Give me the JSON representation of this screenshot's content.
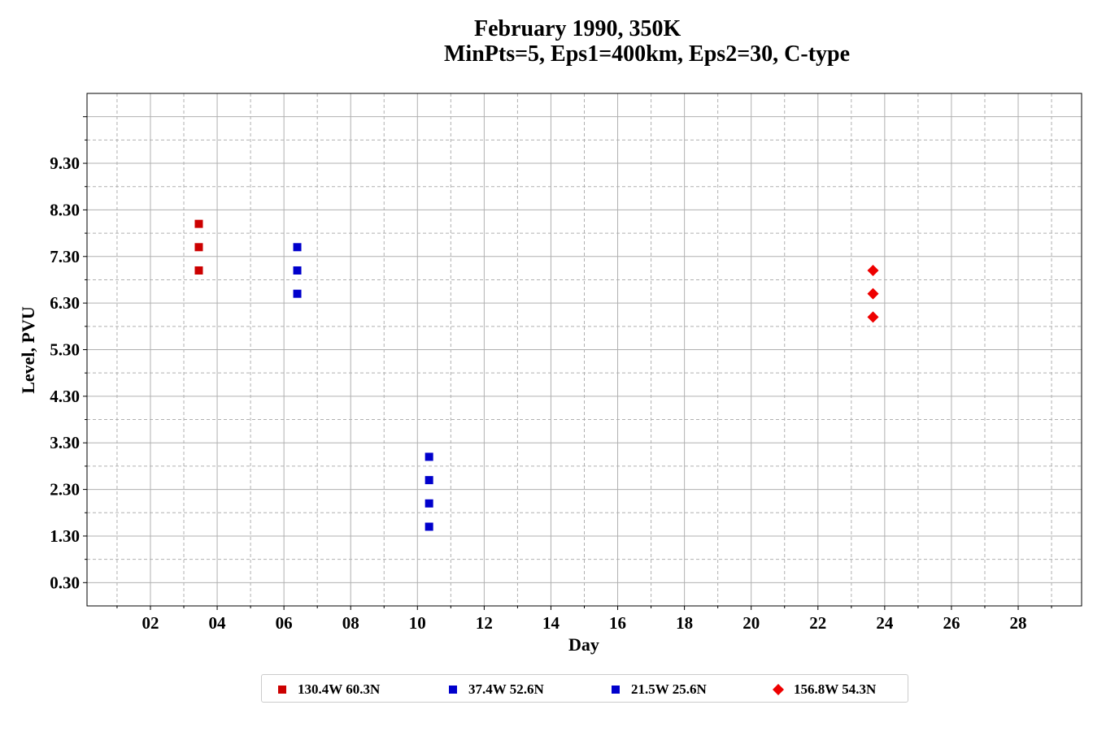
{
  "title": {
    "line1": "February 1990, 350K",
    "line2": "MinPts=5, Eps1=400km, Eps2=30, C-type"
  },
  "chart_data": {
    "type": "scatter",
    "xlabel": "Day",
    "ylabel": "Level, PVU",
    "xlim": [
      0.1,
      29.9
    ],
    "ylim": [
      -0.2,
      10.8
    ],
    "x_ticks": [
      "02",
      "04",
      "06",
      "08",
      "10",
      "12",
      "14",
      "16",
      "18",
      "20",
      "22",
      "24",
      "26",
      "28"
    ],
    "x_tick_values": [
      2,
      4,
      6,
      8,
      10,
      12,
      14,
      16,
      18,
      20,
      22,
      24,
      26,
      28
    ],
    "y_ticks": [
      "0.30",
      "1.30",
      "2.30",
      "3.30",
      "4.30",
      "5.30",
      "6.30",
      "7.30",
      "8.30",
      "9.30"
    ],
    "y_tick_values": [
      0.3,
      1.3,
      2.3,
      3.3,
      4.3,
      5.3,
      6.3,
      7.3,
      8.3,
      9.3
    ],
    "grid": true,
    "legend_position": "bottom-center",
    "series": [
      {
        "name": "130.4W 60.3N",
        "marker": "square",
        "color": "#cc0000",
        "x": [
          3.45,
          3.45,
          3.45
        ],
        "y": [
          8.0,
          7.5,
          7.0
        ]
      },
      {
        "name": "37.4W 52.6N",
        "marker": "square",
        "color": "#0000cc",
        "x": [
          6.4,
          6.4,
          6.4
        ],
        "y": [
          7.5,
          7.0,
          6.5
        ]
      },
      {
        "name": "21.5W 25.6N",
        "marker": "square",
        "color": "#0000cc",
        "x": [
          10.35,
          10.35,
          10.35,
          10.35
        ],
        "y": [
          3.0,
          2.5,
          2.0,
          1.5
        ]
      },
      {
        "name": "156.8W 54.3N",
        "marker": "diamond",
        "color": "#ee0000",
        "x": [
          23.65,
          23.65,
          23.65
        ],
        "y": [
          7.0,
          6.5,
          6.0
        ]
      }
    ]
  }
}
